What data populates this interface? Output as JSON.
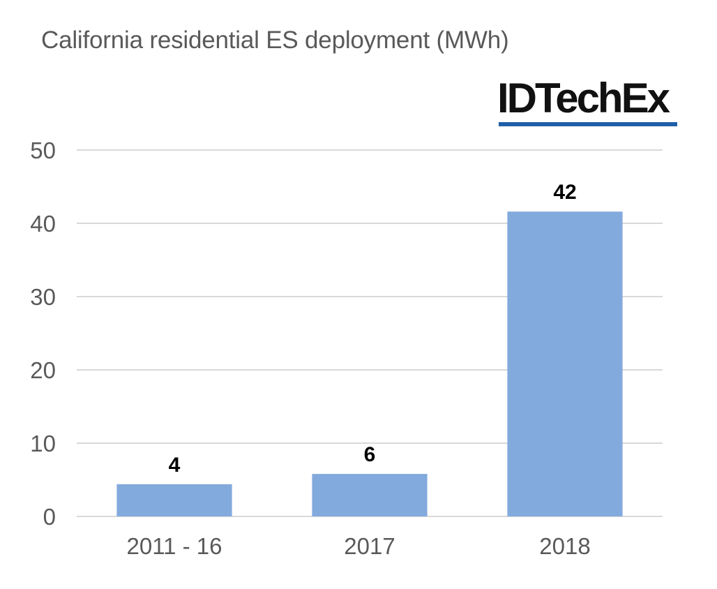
{
  "logo": {
    "text": "IDTechEx",
    "underline_color": "#1f5fa8"
  },
  "chart_data": {
    "type": "bar",
    "title": "California residential ES deployment (MWh)",
    "xlabel": "",
    "ylabel": "",
    "categories": [
      "2011 - 16",
      "2017",
      "2018"
    ],
    "values": [
      4.4,
      5.8,
      41.6
    ],
    "data_labels": [
      "4",
      "6",
      "42"
    ],
    "ylim": [
      0,
      50
    ],
    "yticks": [
      0,
      10,
      20,
      30,
      40,
      50
    ],
    "grid": true,
    "legend": "none",
    "colors": {
      "bar": "#83aadd",
      "grid": "#d9d9d9",
      "tick_text": "#595959",
      "label_text": "#000000"
    }
  }
}
